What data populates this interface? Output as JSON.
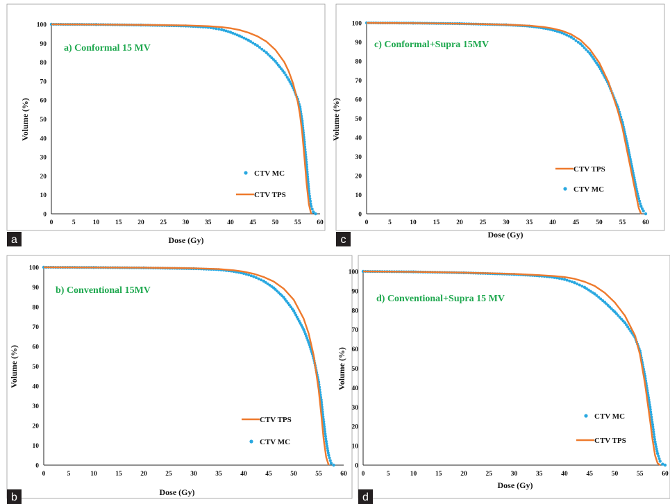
{
  "colors": {
    "mc": "#29a8e0",
    "tps": "#ee7a2d",
    "title": "#1fa84f",
    "badge": "#231f20"
  },
  "chart_data": [
    {
      "type": "line",
      "panel": "a",
      "title": "a) Conformal 15 MV",
      "xlabel": "Dose (Gy)",
      "ylabel": "Volume (%)",
      "xlim": [
        0,
        60
      ],
      "ylim": [
        0,
        100
      ],
      "xticks": [
        "0",
        "5",
        "10",
        "15",
        "20",
        "25",
        "30",
        "35",
        "40",
        "45",
        "50",
        "55",
        "60"
      ],
      "yticks": [
        "0",
        "10",
        "20",
        "30",
        "40",
        "50",
        "60",
        "70",
        "80",
        "90",
        "100"
      ],
      "legend": [
        "CTV MC",
        "CTV TPS"
      ],
      "series": [
        {
          "name": "CTV MC",
          "style": "dots",
          "x": [
            0,
            10,
            20,
            30,
            35,
            38,
            40,
            42,
            44,
            46,
            48,
            50,
            52,
            53,
            54,
            55,
            55.5,
            56,
            56.5,
            57,
            57.5,
            58,
            58.5,
            59
          ],
          "y": [
            100,
            99.9,
            99.6,
            99.1,
            98.4,
            97.2,
            95.8,
            93.9,
            91.6,
            88.7,
            85.1,
            80.5,
            74.5,
            70.8,
            66.5,
            60.5,
            56.5,
            49,
            38,
            26,
            12,
            4,
            1,
            0
          ]
        },
        {
          "name": "CTV TPS",
          "style": "line",
          "x": [
            0,
            10,
            20,
            30,
            35,
            38,
            40,
            42,
            44,
            46,
            48,
            50,
            52,
            53,
            54,
            55,
            55.5,
            56,
            56.5,
            57,
            57.5,
            58
          ],
          "y": [
            100,
            99.9,
            99.7,
            99.4,
            99,
            98.5,
            97.9,
            97,
            95.6,
            93.7,
            90.9,
            86.6,
            80.1,
            75.2,
            68.6,
            59.2,
            52.5,
            43,
            30,
            16,
            5,
            0
          ]
        }
      ]
    },
    {
      "type": "line",
      "panel": "c",
      "title": "c) Conformal+Supra 15MV",
      "xlabel": "Dose (Gy)",
      "ylabel": "Volume (%)",
      "xlim": [
        0,
        60
      ],
      "ylim": [
        0,
        100
      ],
      "xticks": [
        "0",
        "5",
        "10",
        "15",
        "20",
        "25",
        "30",
        "35",
        "40",
        "45",
        "50",
        "55",
        "60"
      ],
      "yticks": [
        "0",
        "10",
        "20",
        "30",
        "40",
        "50",
        "60",
        "70",
        "80",
        "90",
        "100"
      ],
      "legend": [
        "CTV TPS",
        "CTV MC"
      ],
      "series": [
        {
          "name": "CTV MC",
          "style": "dots",
          "x": [
            0,
            10,
            20,
            30,
            35,
            38,
            40,
            42,
            44,
            46,
            48,
            50,
            52,
            54,
            55,
            56,
            57,
            57.5,
            58,
            58.5,
            59,
            59.5,
            60
          ],
          "y": [
            100,
            99.9,
            99.6,
            99,
            98.3,
            97.3,
            96.3,
            94.8,
            92.5,
            89,
            84,
            77,
            68,
            56,
            48,
            37,
            25,
            19,
            13,
            8,
            4,
            1.5,
            0
          ]
        },
        {
          "name": "CTV TPS",
          "style": "line",
          "x": [
            0,
            10,
            20,
            30,
            35,
            38,
            40,
            42,
            44,
            46,
            48,
            50,
            52,
            54,
            55,
            56,
            57,
            58,
            58.5,
            59
          ],
          "y": [
            100,
            99.9,
            99.6,
            99.1,
            98.6,
            97.9,
            97.1,
            95.9,
            94,
            91,
            86.2,
            79.2,
            69,
            54,
            45,
            33,
            21,
            9,
            3,
            0
          ]
        }
      ]
    },
    {
      "type": "line",
      "panel": "b",
      "title": "b) Conventional 15MV",
      "xlabel": "Dose (Gy)",
      "ylabel": "Volume (%)",
      "xlim": [
        0,
        60
      ],
      "ylim": [
        0,
        100
      ],
      "xticks": [
        "0",
        "5",
        "10",
        "15",
        "20",
        "25",
        "30",
        "35",
        "40",
        "45",
        "50",
        "55",
        "60"
      ],
      "yticks": [
        "0",
        "10",
        "20",
        "30",
        "40",
        "50",
        "60",
        "70",
        "80",
        "90",
        "100"
      ],
      "legend": [
        "CTV TPS",
        "CTV MC"
      ],
      "series": [
        {
          "name": "CTV MC",
          "style": "dots",
          "x": [
            0,
            10,
            20,
            30,
            35,
            38,
            40,
            42,
            44,
            46,
            48,
            50,
            52,
            53,
            54,
            55,
            55.5,
            56,
            56.5,
            57,
            57.5,
            58
          ],
          "y": [
            100,
            99.9,
            99.7,
            99.3,
            98.8,
            97.9,
            96.9,
            95.3,
            93,
            89.6,
            84.8,
            78,
            68.5,
            62,
            54,
            42,
            33,
            22,
            12,
            5,
            1,
            0
          ]
        },
        {
          "name": "CTV TPS",
          "style": "line",
          "x": [
            0,
            10,
            20,
            30,
            35,
            38,
            40,
            42,
            44,
            46,
            48,
            50,
            52,
            53,
            54,
            55,
            55.5,
            56,
            56.5,
            57
          ],
          "y": [
            100,
            99.9,
            99.8,
            99.5,
            99.1,
            98.5,
            97.8,
            96.7,
            95.1,
            92.8,
            89.2,
            83.6,
            74,
            66.5,
            55.5,
            38,
            26,
            13,
            4,
            0
          ]
        }
      ]
    },
    {
      "type": "line",
      "panel": "d",
      "title": "d) Conventional+Supra 15 MV",
      "xlabel": "Dose (Gy)",
      "ylabel": "Volume (%)",
      "xlim": [
        0,
        60
      ],
      "ylim": [
        0,
        100
      ],
      "xticks": [
        "0",
        "5",
        "10",
        "15",
        "20",
        "25",
        "30",
        "35",
        "40",
        "45",
        "50",
        "55",
        "60"
      ],
      "yticks": [
        "0",
        "10",
        "20",
        "30",
        "40",
        "50",
        "60",
        "70",
        "80",
        "90",
        "100"
      ],
      "legend": [
        "CTV MC",
        "CTV TPS"
      ],
      "series": [
        {
          "name": "CTV MC",
          "style": "dots",
          "x": [
            0,
            10,
            20,
            30,
            35,
            38,
            40,
            42,
            44,
            46,
            48,
            50,
            52,
            54,
            55,
            56,
            57,
            57.5,
            58,
            58.5,
            59,
            59.5,
            60
          ],
          "y": [
            100,
            99.8,
            99.3,
            98.5,
            97.7,
            96.9,
            95.9,
            94.2,
            91.8,
            88.4,
            84.1,
            79.1,
            73.5,
            66,
            59,
            46,
            30,
            21,
            12,
            6,
            2,
            0.5,
            0
          ]
        },
        {
          "name": "CTV TPS",
          "style": "line",
          "x": [
            0,
            10,
            20,
            30,
            35,
            38,
            40,
            42,
            44,
            46,
            48,
            50,
            52,
            54,
            55,
            56,
            57,
            57.5,
            58,
            58.5,
            59
          ],
          "y": [
            100,
            99.8,
            99.4,
            98.7,
            98.1,
            97.6,
            97.1,
            96.2,
            94.7,
            92.5,
            89,
            84,
            77.2,
            67,
            57,
            42,
            23,
            13,
            5,
            1,
            0
          ]
        }
      ]
    }
  ]
}
